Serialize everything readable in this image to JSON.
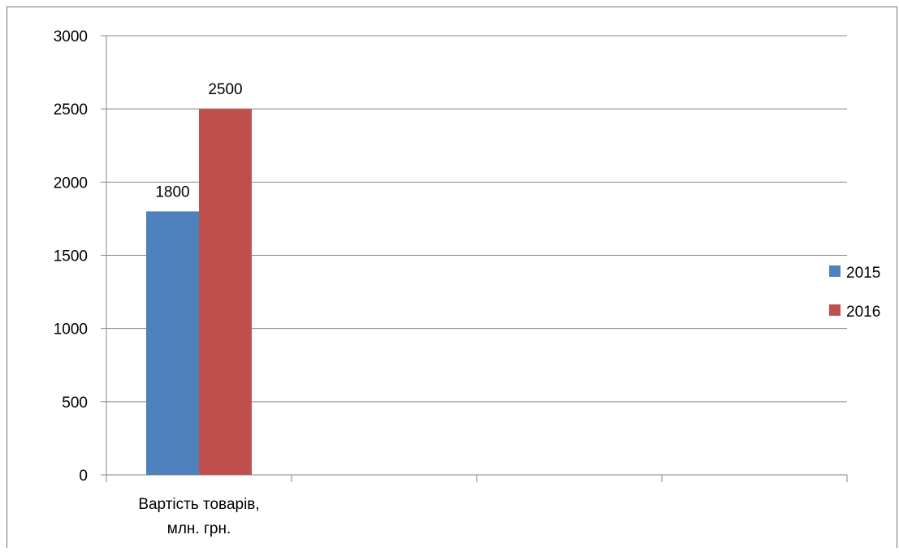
{
  "chart_data": {
    "type": "bar",
    "categories": [
      "Вартість товарів, млн. грн.",
      "",
      "",
      ""
    ],
    "category_label_lines": [
      [
        "Вартість товарів,",
        "млн. грн."
      ],
      [],
      [],
      []
    ],
    "series": [
      {
        "name": "2015",
        "values": [
          1800,
          null,
          null,
          null
        ],
        "color": "#4F81BD"
      },
      {
        "name": "2016",
        "values": [
          2500,
          null,
          null,
          null
        ],
        "color": "#C0504D"
      }
    ],
    "data_labels": true,
    "ylim": [
      0,
      3000
    ],
    "yticks": [
      0,
      500,
      1000,
      1500,
      2000,
      2500,
      3000
    ],
    "grid": true,
    "legend_position": "right",
    "title": "",
    "xlabel": "",
    "ylabel": ""
  }
}
